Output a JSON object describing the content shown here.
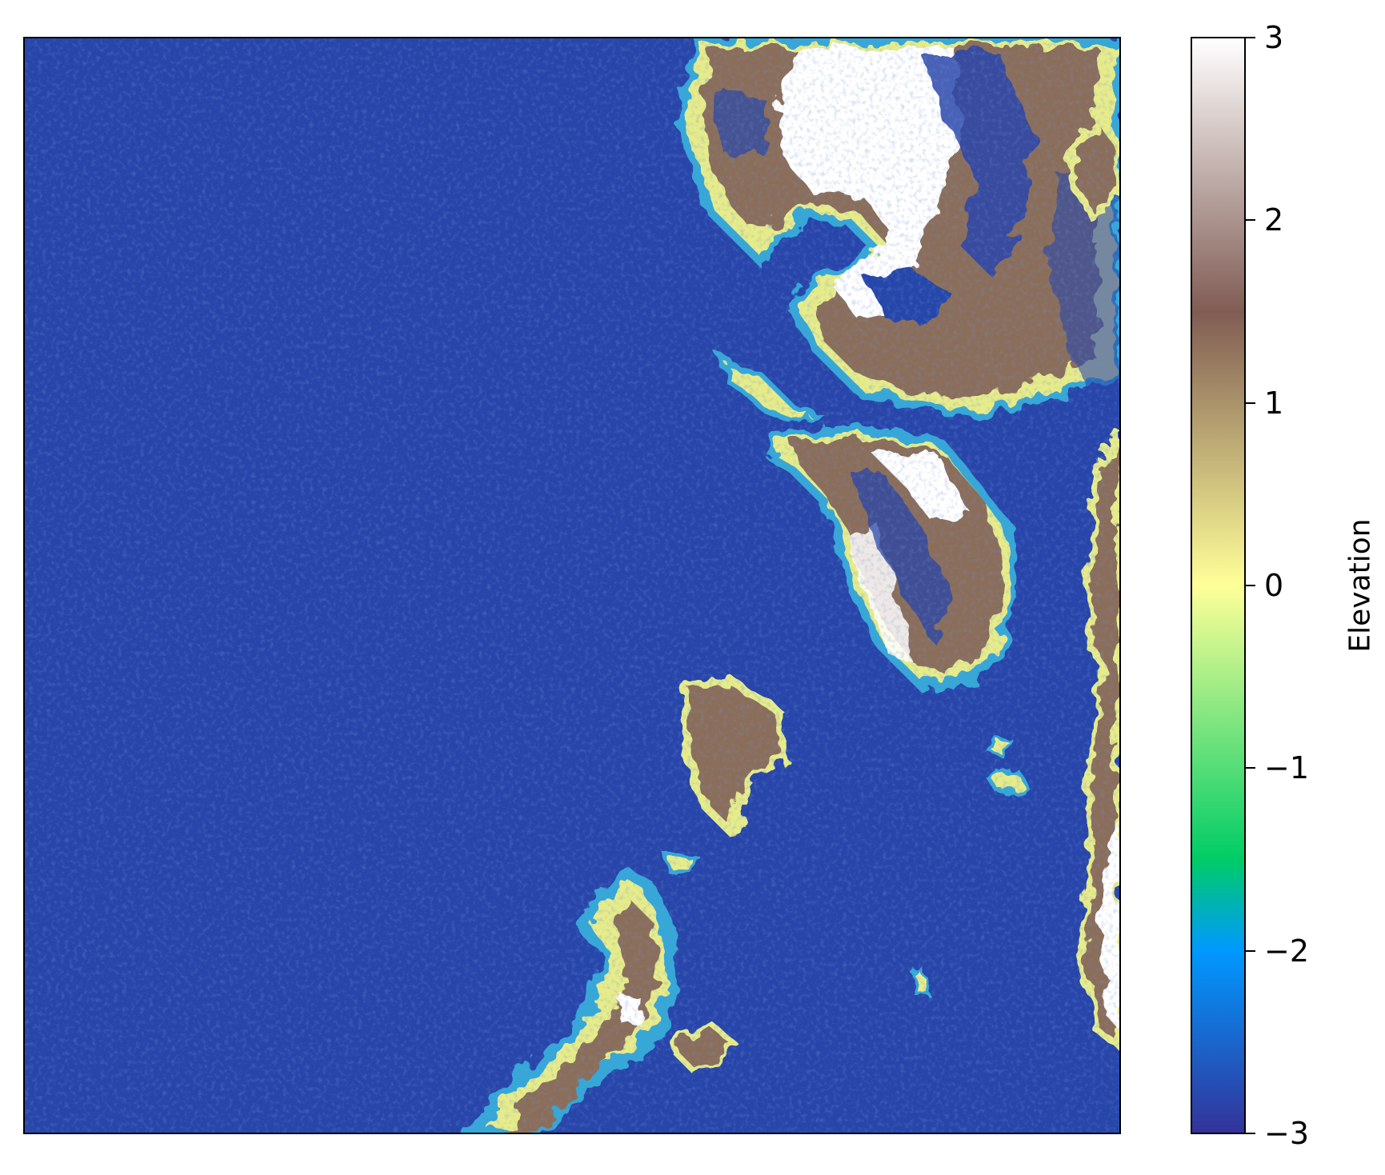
{
  "chart_data": {
    "type": "heatmap",
    "title": "",
    "xlabel": "",
    "ylabel": "",
    "colormap": "terrain",
    "clim": [
      -3,
      3
    ],
    "colorbar": {
      "label": "Elevation",
      "ticks": [
        {
          "value": 3,
          "label": "3"
        },
        {
          "value": 2,
          "label": "2"
        },
        {
          "value": 1,
          "label": "1"
        },
        {
          "value": 0,
          "label": "0"
        },
        {
          "value": -1,
          "label": "−1"
        },
        {
          "value": -2,
          "label": "−2"
        },
        {
          "value": -3,
          "label": "−3"
        }
      ],
      "stops": [
        {
          "value": -3,
          "color": "#333399"
        },
        {
          "value": -2,
          "color": "#0099ff"
        },
        {
          "value": -1.5,
          "color": "#00cc66"
        },
        {
          "value": 0,
          "color": "#ffff99"
        },
        {
          "value": 1.5,
          "color": "#805c54"
        },
        {
          "value": 3,
          "color": "#ffffff"
        }
      ]
    },
    "background_color": "#2846aa"
  }
}
